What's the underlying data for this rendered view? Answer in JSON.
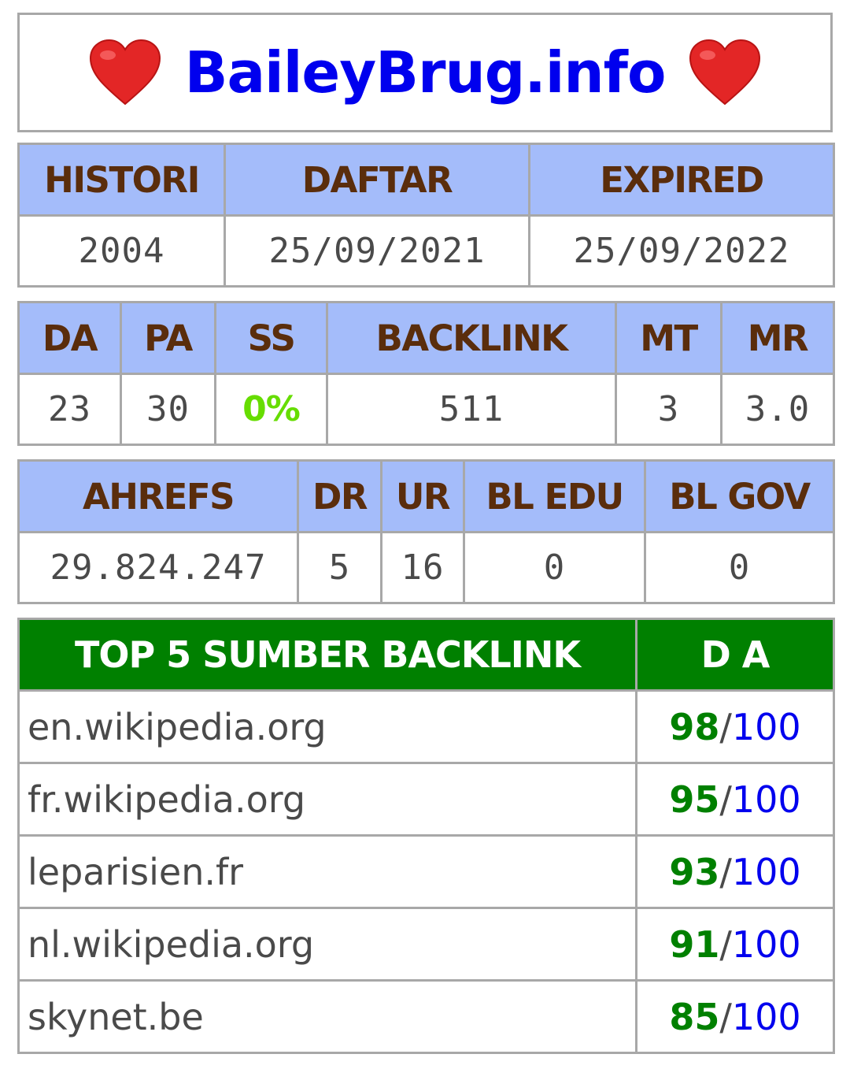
{
  "site": {
    "title": "BaileyBrug.info",
    "heart_color": "#ec2a2a"
  },
  "registration": {
    "headers": [
      "HISTORI",
      "DAFTAR",
      "EXPIRED"
    ],
    "values": [
      "2004",
      "25/09/2021",
      "25/09/2022"
    ]
  },
  "moz": {
    "headers": [
      "DA",
      "PA",
      "SS",
      "BACKLINK",
      "MT",
      "MR"
    ],
    "values": [
      "23",
      "30",
      "0%",
      "511",
      "3",
      "3.0"
    ]
  },
  "ahrefs": {
    "headers": [
      "AHREFS",
      "DR",
      "UR",
      "BL EDU",
      "BL GOV"
    ],
    "values": [
      "29.824.247",
      "5",
      "16",
      "0",
      "0"
    ]
  },
  "backlinks": {
    "header_source": "TOP 5 SUMBER BACKLINK",
    "header_da": "D A",
    "separator": "/",
    "max": "100",
    "rows": [
      {
        "source": "en.wikipedia.org",
        "da": "98"
      },
      {
        "source": "fr.wikipedia.org",
        "da": "95"
      },
      {
        "source": "leparisien.fr",
        "da": "93"
      },
      {
        "source": "nl.wikipedia.org",
        "da": "91"
      },
      {
        "source": "skynet.be",
        "da": "85"
      }
    ]
  },
  "colors": {
    "header_bg": "#a4bcfa",
    "header_text": "#5a2d0c",
    "backlink_header_bg": "#008000",
    "title": "#0000ee",
    "ss_value": "#66dd00",
    "da_score": "#008000",
    "da_max": "#0000ee"
  }
}
